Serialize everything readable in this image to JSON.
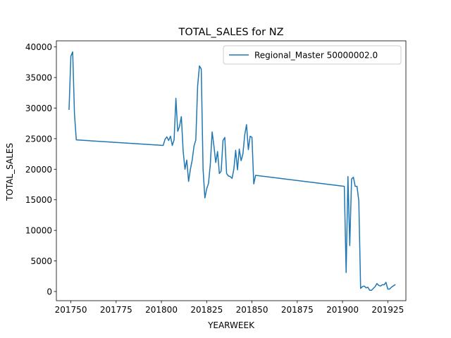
{
  "chart_data": {
    "type": "line",
    "title": "TOTAL_SALES for NZ",
    "xlabel": "YEARWEEK",
    "ylabel": "TOTAL_SALES",
    "xlim": [
      201742,
      201935
    ],
    "ylim": [
      -1500,
      41000
    ],
    "xticks": [
      201750,
      201775,
      201800,
      201825,
      201850,
      201875,
      201900,
      201925
    ],
    "yticks": [
      0,
      5000,
      10000,
      15000,
      20000,
      25000,
      30000,
      35000,
      40000
    ],
    "grid": false,
    "legend_position": "top-right",
    "colors": {
      "series": "#1f77b4"
    },
    "series": [
      {
        "name": "Regional_Master 50000002.0",
        "x": [
          201749,
          201750,
          201751,
          201752,
          201753,
          201801,
          201802,
          201803,
          201804,
          201805,
          201806,
          201807,
          201808,
          201809,
          201810,
          201811,
          201812,
          201813,
          201814,
          201815,
          201816,
          201817,
          201818,
          201819,
          201820,
          201821,
          201822,
          201823,
          201824,
          201825,
          201826,
          201827,
          201828,
          201829,
          201830,
          201831,
          201832,
          201833,
          201834,
          201835,
          201836,
          201837,
          201838,
          201839,
          201840,
          201841,
          201842,
          201843,
          201844,
          201845,
          201846,
          201847,
          201848,
          201849,
          201850,
          201851,
          201852,
          201901,
          201902,
          201903,
          201904,
          201905,
          201906,
          201907,
          201908,
          201909,
          201910,
          201911,
          201912,
          201913,
          201914,
          201915,
          201916,
          201917,
          201918,
          201919,
          201920,
          201921,
          201922,
          201923,
          201924,
          201925,
          201926,
          201927,
          201928,
          201929
        ],
        "values": [
          29800,
          38500,
          39200,
          29000,
          24800,
          23900,
          24900,
          25300,
          24700,
          25400,
          23900,
          24800,
          31600,
          26200,
          27000,
          28600,
          23000,
          20000,
          21500,
          18000,
          20000,
          21500,
          23800,
          24800,
          33600,
          36900,
          36400,
          20000,
          15300,
          16800,
          17700,
          20800,
          26100,
          23800,
          21100,
          22900,
          19300,
          19700,
          24700,
          25200,
          19300,
          18900,
          18800,
          18500,
          20000,
          23100,
          19900,
          23300,
          21400,
          22500,
          25600,
          27300,
          23200,
          25400,
          25200,
          17600,
          19000,
          17200,
          3100,
          18800,
          7500,
          18400,
          18700,
          17200,
          17200,
          14800,
          500,
          800,
          900,
          600,
          700,
          200,
          200,
          500,
          800,
          1300,
          1000,
          900,
          1100,
          1100,
          1500,
          400,
          400,
          700,
          900,
          1100
        ]
      }
    ]
  }
}
